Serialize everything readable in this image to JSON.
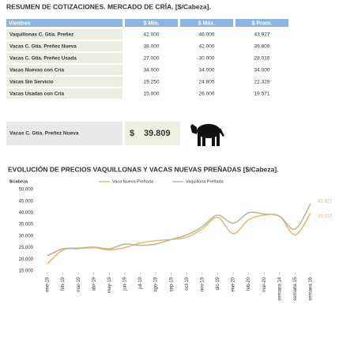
{
  "header": {
    "title": "RESUMEN DE COTIZACIONES. MERCADO DE CRÍA. [$/Cabeza]."
  },
  "table": {
    "columns": [
      "Vientres",
      "$ Mín.",
      "$ Máx.",
      "$ Prom."
    ],
    "rows": [
      [
        "Vaquillonas C. Gtía. Preñez",
        "42.000",
        "46.000",
        "43.927"
      ],
      [
        "Vacas C. Gtía. Preñez Nueva",
        "38.000",
        "42.000",
        "39.809"
      ],
      [
        "Vacas C. Gtía. Preñez Usada",
        "27.000",
        "30.000",
        "28.016"
      ],
      [
        "Vacas Nuevas con Cría",
        "34.000",
        "34.000",
        "34.000"
      ],
      [
        "Vacas Sin Servicio",
        "19.250",
        "24.805",
        "22.329"
      ],
      [
        "Vacas Usadas con Cría",
        "15.000",
        "26.000",
        "19.571"
      ]
    ]
  },
  "highlight": {
    "label": "Vacas C. Gtía. Preñez Nueva",
    "currency": "$",
    "value": "39.809"
  },
  "chart_data": {
    "type": "line",
    "title": "EVOLUCIÓN DE PRECIOS VAQUILLONAS Y VACAS NUEVAS PREÑADAS [$/Cabeza].",
    "y_label": "$/cabeza",
    "categories": [
      "ene-19",
      "feb-19",
      "mar-19",
      "abr-19",
      "may-19",
      "jun-19",
      "jul-19",
      "ago-19",
      "sep-19",
      "oct-19",
      "nov-19",
      "dic-19",
      "ene-20",
      "feb-20",
      "mar-20",
      "semana 14",
      "semana 15",
      "semana 16"
    ],
    "series": [
      {
        "name": "Vaca Nueva Preñada",
        "color": "#f5b56e",
        "values": [
          18000,
          24000,
          24500,
          25000,
          24000,
          25000,
          27000,
          28000,
          28500,
          29500,
          33000,
          38000,
          31000,
          37000,
          39000,
          38500,
          30500,
          39810
        ],
        "value_labels": [
          null,
          null,
          null,
          null,
          null,
          null,
          null,
          null,
          null,
          null,
          null,
          null,
          null,
          null,
          null,
          null,
          null,
          "39.810"
        ]
      },
      {
        "name": "Vaquillona Preñada",
        "color": "#b7bb9c",
        "values": [
          21500,
          24500,
          24800,
          25200,
          24500,
          26500,
          26000,
          26500,
          28500,
          30500,
          34000,
          39000,
          35500,
          40000,
          39500,
          38500,
          33000,
          43927
        ],
        "value_labels": [
          null,
          null,
          null,
          null,
          null,
          null,
          null,
          null,
          null,
          null,
          null,
          null,
          null,
          null,
          null,
          null,
          null,
          "43.927"
        ]
      }
    ],
    "ylim": [
      15000,
      50000
    ],
    "yticks": [
      {
        "value": 15000,
        "label": "15.000"
      },
      {
        "value": 20000,
        "label": "20.000"
      },
      {
        "value": 25000,
        "label": "25.000"
      },
      {
        "value": 30000,
        "label": "30.000"
      },
      {
        "value": 35000,
        "label": "35.000"
      },
      {
        "value": 40000,
        "label": "40.000"
      },
      {
        "value": 45000,
        "label": "45.000"
      },
      {
        "value": 50000,
        "label": "50.000"
      }
    ],
    "grid": false
  }
}
